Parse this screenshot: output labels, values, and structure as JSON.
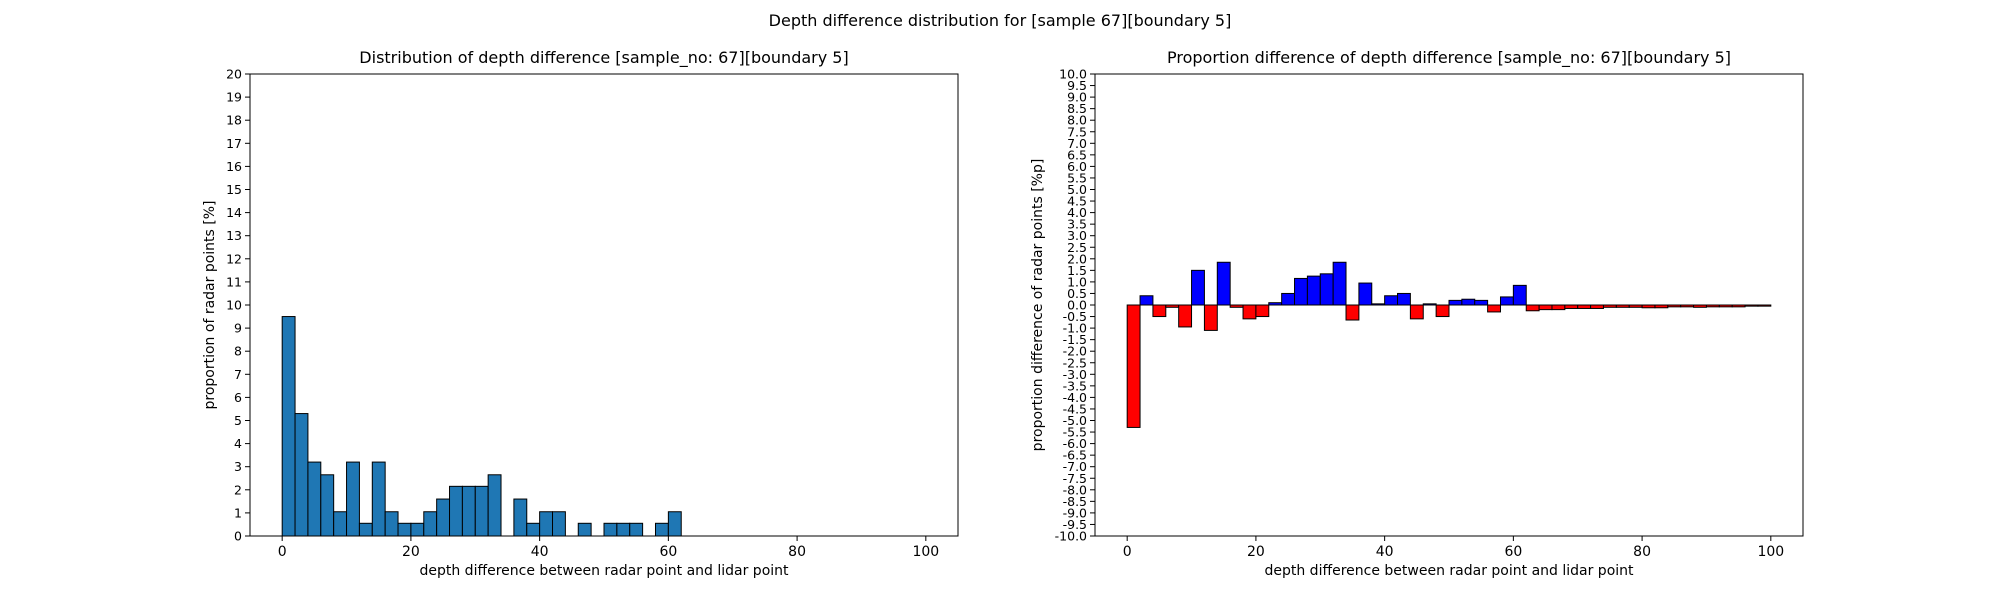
{
  "suptitle": "Depth difference distribution for [sample 67][boundary 5]",
  "chart_data": [
    {
      "type": "bar",
      "title": "Distribution of depth difference [sample_no: 67][boundary 5]",
      "xlabel": "depth difference between radar point and lidar point",
      "ylabel": "proportion of radar points [%]",
      "xlim": [
        -5,
        105
      ],
      "ylim": [
        0,
        20
      ],
      "xticks": [
        "0",
        "20",
        "40",
        "60",
        "80",
        "100"
      ],
      "yticks": [
        "0",
        "1",
        "2",
        "3",
        "4",
        "5",
        "6",
        "7",
        "8",
        "9",
        "10",
        "11",
        "12",
        "13",
        "14",
        "15",
        "16",
        "17",
        "18",
        "19",
        "20"
      ],
      "bin_width": 2,
      "x": [
        1,
        3,
        5,
        7,
        9,
        11,
        13,
        15,
        17,
        19,
        21,
        23,
        25,
        27,
        29,
        31,
        33,
        35,
        37,
        39,
        41,
        43,
        45,
        47,
        49,
        51,
        53,
        55,
        57,
        59,
        61
      ],
      "values": [
        9.5,
        5.3,
        3.2,
        2.65,
        1.05,
        3.2,
        0.55,
        3.2,
        1.05,
        0.55,
        0.55,
        1.05,
        1.6,
        2.15,
        2.15,
        2.15,
        2.65,
        0,
        1.6,
        0.55,
        1.05,
        1.05,
        0,
        0.55,
        0,
        0.55,
        0.55,
        0.55,
        0,
        0.55,
        1.05
      ],
      "colors": {
        "bar": "#1f77b4",
        "edge": "#000000"
      }
    },
    {
      "type": "bar",
      "title": "Proportion difference of depth difference [sample_no: 67][boundary 5]",
      "xlabel": "depth difference between radar point and lidar point",
      "ylabel": "proportion difference of radar points [%p]",
      "xlim": [
        -5,
        105
      ],
      "ylim": [
        -10,
        10
      ],
      "xticks": [
        "0",
        "20",
        "40",
        "60",
        "80",
        "100"
      ],
      "yticks": [
        "-10.0",
        "-9.5",
        "-9.0",
        "-8.5",
        "-8.0",
        "-7.5",
        "-7.0",
        "-6.5",
        "-6.0",
        "-5.5",
        "-5.0",
        "-4.5",
        "-4.0",
        "-3.5",
        "-3.0",
        "-2.5",
        "-2.0",
        "-1.5",
        "-1.0",
        "-0.5",
        "0.0",
        "0.5",
        "1.0",
        "1.5",
        "2.0",
        "2.5",
        "3.0",
        "3.5",
        "4.0",
        "4.5",
        "5.0",
        "5.5",
        "6.0",
        "6.5",
        "7.0",
        "7.5",
        "8.0",
        "8.5",
        "9.0",
        "9.5",
        "10.0"
      ],
      "bin_width": 2,
      "x": [
        1,
        3,
        5,
        7,
        9,
        11,
        13,
        15,
        17,
        19,
        21,
        23,
        25,
        27,
        29,
        31,
        33,
        35,
        37,
        39,
        41,
        43,
        45,
        47,
        49,
        51,
        53,
        55,
        57,
        59,
        61,
        63,
        65,
        67,
        69,
        71,
        73,
        75,
        77,
        79,
        81,
        83,
        85,
        87,
        89,
        91,
        93,
        95,
        97,
        99
      ],
      "values": [
        -5.3,
        0.4,
        -0.5,
        -0.1,
        -0.95,
        1.5,
        -1.1,
        1.85,
        -0.1,
        -0.6,
        -0.5,
        0.1,
        0.5,
        1.15,
        1.25,
        1.35,
        1.85,
        -0.65,
        0.95,
        0.05,
        0.4,
        0.5,
        -0.6,
        0.05,
        -0.5,
        0.2,
        0.25,
        0.2,
        -0.3,
        0.35,
        0.85,
        -0.25,
        -0.2,
        -0.2,
        -0.15,
        -0.15,
        -0.15,
        -0.1,
        -0.1,
        -0.1,
        -0.12,
        -0.12,
        -0.08,
        -0.08,
        -0.1,
        -0.08,
        -0.08,
        -0.08,
        -0.05,
        -0.05
      ],
      "colors": {
        "positive": "#0000ff",
        "negative": "#ff0000",
        "edge": "#000000"
      }
    }
  ]
}
